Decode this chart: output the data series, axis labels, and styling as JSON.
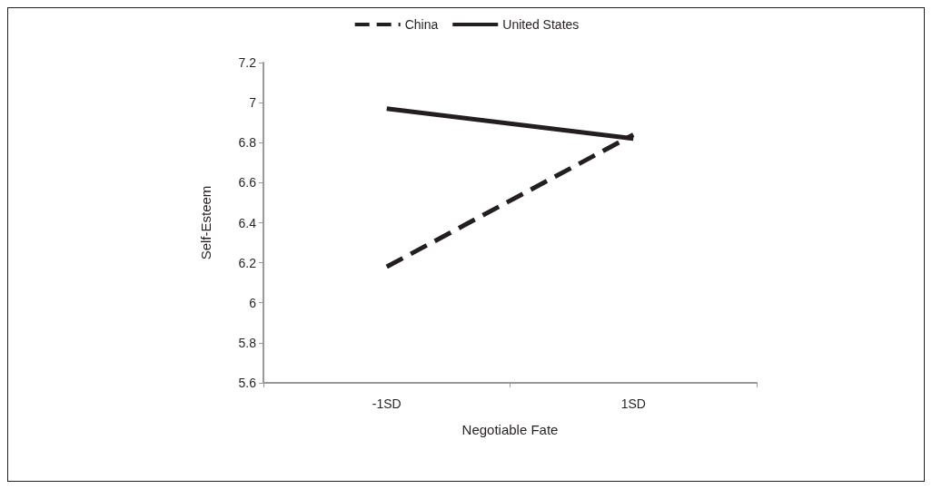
{
  "chart_data": {
    "type": "line",
    "xlabel": "Negotiable Fate",
    "ylabel": "Self-Esteem",
    "categories": [
      "-1SD",
      "1SD"
    ],
    "series": [
      {
        "name": "China",
        "color": "#231f20",
        "values": [
          6.18,
          6.84
        ],
        "line_style": "dashed"
      },
      {
        "name": "United States",
        "color": "#231f20",
        "values": [
          6.97,
          6.82
        ],
        "line_style": "solid"
      }
    ],
    "ylim": [
      5.6,
      7.2
    ],
    "yticks": [
      5.6,
      5.8,
      6,
      6.2,
      6.4,
      6.6,
      6.8,
      7,
      7.2
    ],
    "grid": false,
    "legend": "top",
    "marker": "none"
  }
}
